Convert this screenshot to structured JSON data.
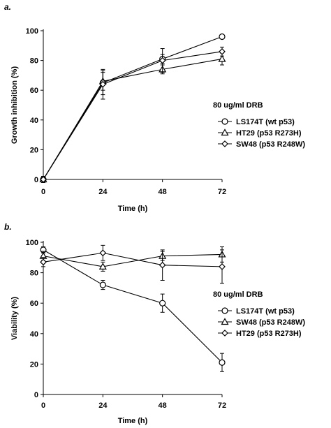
{
  "chart_data": [
    {
      "type": "line",
      "panel_label": "a.",
      "xlabel": "Time (h)",
      "ylabel": "Growth inhibition (%)",
      "x": [
        0,
        24,
        48,
        72
      ],
      "xticks": [
        "0",
        "24",
        "48",
        "72"
      ],
      "yticks": [
        "0",
        "20",
        "40",
        "60",
        "80",
        "100"
      ],
      "xlim": [
        0,
        72
      ],
      "ylim": [
        0,
        100
      ],
      "legend_title": "80 ug/ml DRB",
      "legend_position": "right",
      "series": [
        {
          "name": "LS174T (wt p53)",
          "marker": "circle",
          "values": [
            0,
            65,
            81,
            96
          ],
          "errors": [
            2,
            8,
            3,
            1
          ]
        },
        {
          "name": "HT29 (p53 R273H)",
          "marker": "triangle",
          "values": [
            0,
            66,
            74,
            81
          ],
          "errors": [
            2,
            6,
            3,
            4
          ]
        },
        {
          "name": "SW48 (p53 R248W)",
          "marker": "diamond",
          "values": [
            0,
            64,
            80,
            86
          ],
          "errors": [
            2,
            10,
            8,
            3
          ]
        }
      ]
    },
    {
      "type": "line",
      "panel_label": "b.",
      "xlabel": "Time (h)",
      "ylabel": "Viability (%)",
      "x": [
        0,
        24,
        48,
        72
      ],
      "xticks": [
        "0",
        "24",
        "48",
        "72"
      ],
      "yticks": [
        "0",
        "20",
        "40",
        "60",
        "80",
        "100"
      ],
      "xlim": [
        0,
        72
      ],
      "ylim": [
        0,
        100
      ],
      "legend_title": "80 ug/ml DRB",
      "legend_position": "right",
      "series": [
        {
          "name": "LS174T (wt p53)",
          "marker": "circle",
          "values": [
            95,
            72,
            60,
            21
          ],
          "errors": [
            2,
            3,
            6,
            6
          ]
        },
        {
          "name": "SW48 (p53 R248W)",
          "marker": "triangle",
          "values": [
            91,
            84,
            91,
            92
          ],
          "errors": [
            3,
            3,
            3,
            5
          ]
        },
        {
          "name": "HT29 (p53 R273H)",
          "marker": "diamond",
          "values": [
            87,
            93,
            85,
            84
          ],
          "errors": [
            3,
            5,
            10,
            11
          ]
        }
      ]
    }
  ]
}
